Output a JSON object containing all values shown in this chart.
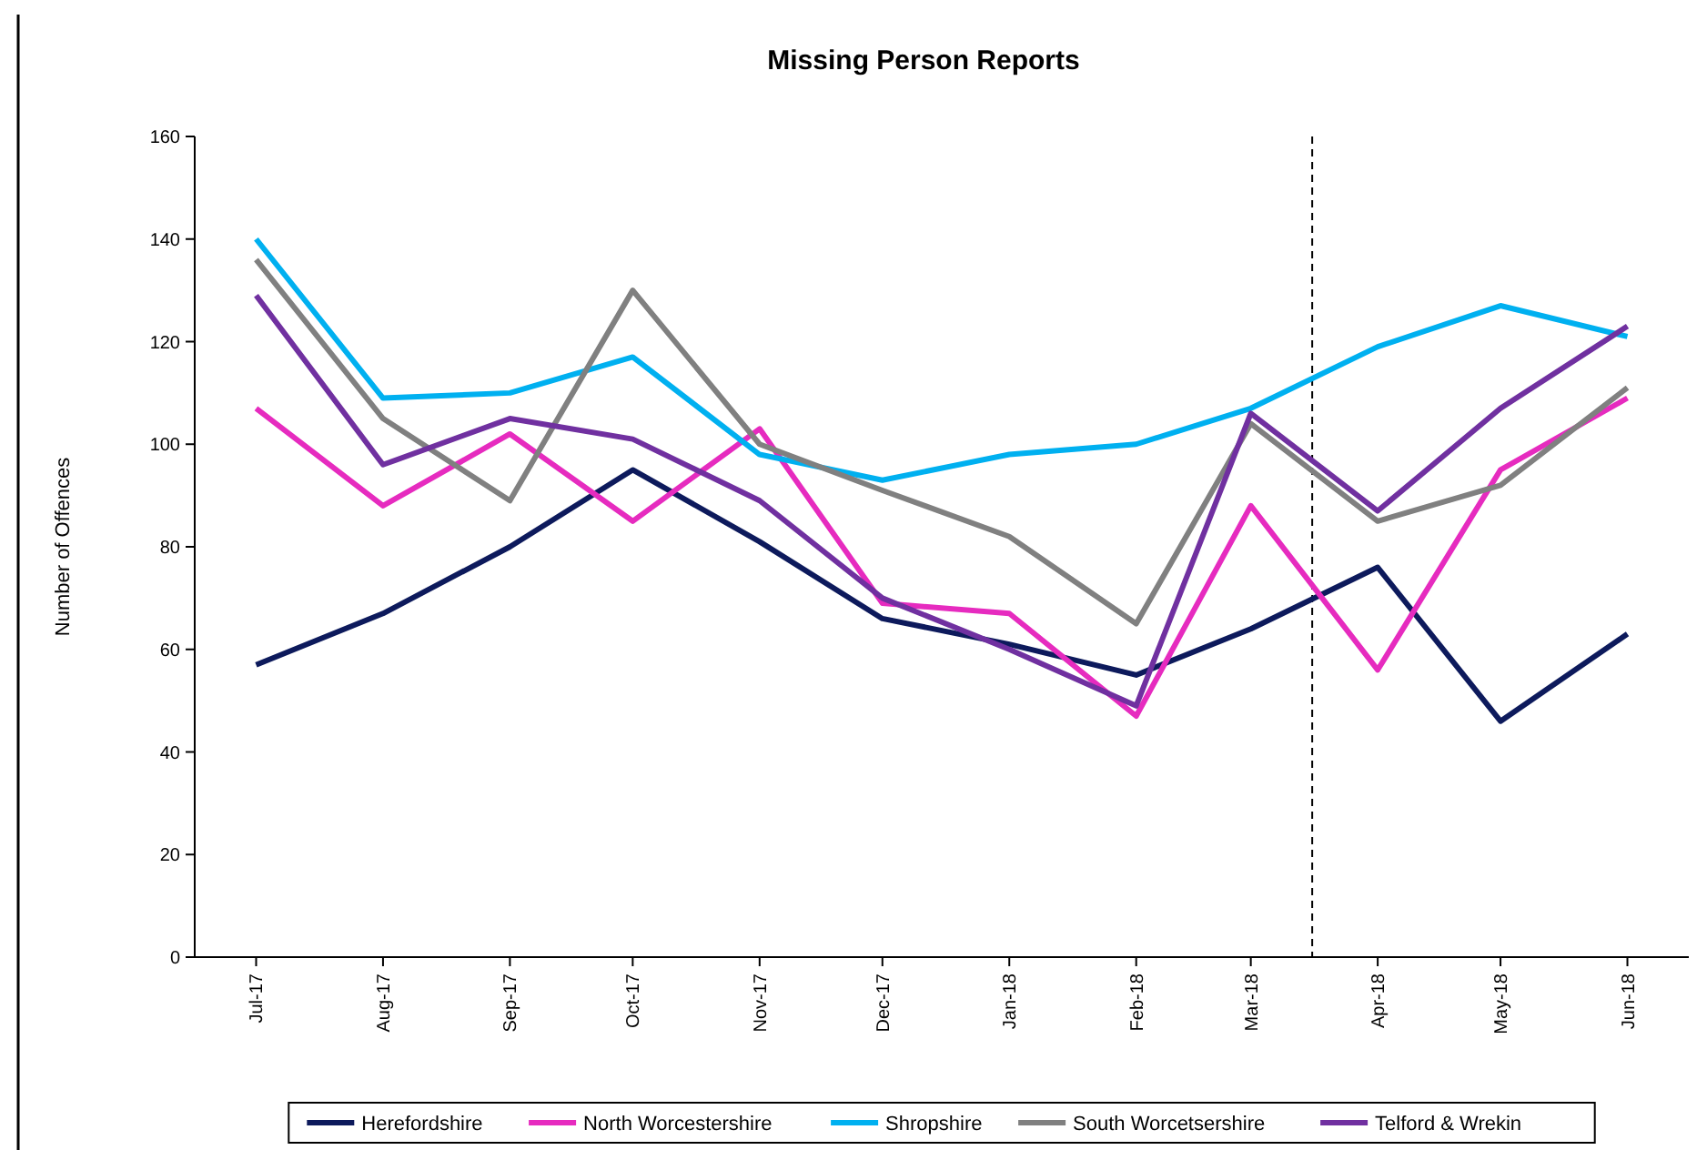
{
  "chart_data": {
    "type": "line",
    "title": "Missing Person Reports",
    "ylabel": "Number of Offences",
    "x": [
      "2017-07",
      "2017-08",
      "2017-09",
      "2017-10",
      "2017-11",
      "2017-12",
      "2018-01",
      "2018-02",
      "2018-03",
      "2018-04",
      "2018-05",
      "2018-06"
    ],
    "xlim": [
      "2017-06-16",
      "2018-06-16"
    ],
    "xticks": [
      {
        "value": "2017-07",
        "label": "Jul-17"
      },
      {
        "value": "2017-08",
        "label": "Aug-17"
      },
      {
        "value": "2017-09",
        "label": "Sep-17"
      },
      {
        "value": "2017-10",
        "label": "Oct-17"
      },
      {
        "value": "2017-11",
        "label": "Nov-17"
      },
      {
        "value": "2017-12",
        "label": "Dec-17"
      },
      {
        "value": "2018-01",
        "label": "Jan-18"
      },
      {
        "value": "2018-02",
        "label": "Feb-18"
      },
      {
        "value": "2018-03",
        "label": "Mar-18"
      },
      {
        "value": "2018-04",
        "label": "Apr-18"
      },
      {
        "value": "2018-05",
        "label": "May-18"
      },
      {
        "value": "2018-06",
        "label": "Jun-18"
      }
    ],
    "ylim": [
      0,
      160
    ],
    "yticks": [
      0,
      20,
      40,
      60,
      80,
      100,
      120,
      140,
      160
    ],
    "grid": false,
    "legend": "bottom",
    "marker": "none",
    "line_style": "solid",
    "ref_lines": [
      {
        "axis": "x",
        "value": "2018-03-16",
        "color": "#000000",
        "line_style": "dashed"
      }
    ],
    "series": [
      {
        "name": "Herefordshire",
        "color": "#0d1a5c",
        "values": [
          57,
          67,
          80,
          95,
          81,
          66,
          61,
          55,
          64,
          76,
          46,
          63
        ]
      },
      {
        "name": "North Worcestershire",
        "color": "#e62bbf",
        "values": [
          107,
          88,
          102,
          85,
          103,
          69,
          67,
          47,
          88,
          56,
          95,
          109
        ]
      },
      {
        "name": "Shropshire",
        "color": "#00b0f0",
        "values": [
          140,
          109,
          110,
          117,
          98,
          93,
          98,
          100,
          107,
          119,
          127,
          121
        ]
      },
      {
        "name": "South Worcetsershire",
        "color": "#808080",
        "values": [
          136,
          105,
          89,
          130,
          100,
          91,
          82,
          65,
          104,
          85,
          92,
          111
        ]
      },
      {
        "name": "Telford & Wrekin",
        "color": "#7030a0",
        "values": [
          129,
          96,
          105,
          101,
          89,
          70,
          60,
          49,
          106,
          87,
          107,
          123
        ]
      }
    ]
  }
}
